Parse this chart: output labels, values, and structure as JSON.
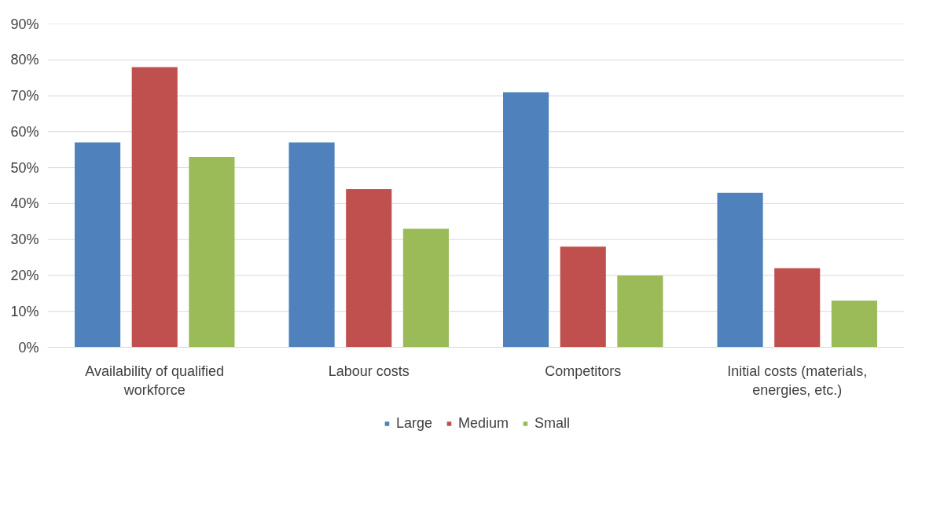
{
  "chart_data": {
    "type": "bar",
    "categories": [
      "Availability of qualified workforce",
      "Labour costs",
      "Competitors",
      "Initial costs (materials, energies, etc.)"
    ],
    "series": [
      {
        "name": "Large",
        "color": "#4f81bd",
        "values": [
          57,
          57,
          71,
          43
        ]
      },
      {
        "name": "Medium",
        "color": "#c0504d",
        "values": [
          78,
          44,
          28,
          22
        ]
      },
      {
        "name": "Small",
        "color": "#9bbb59",
        "values": [
          53,
          33,
          20,
          13
        ]
      }
    ],
    "ylim": [
      0,
      90
    ],
    "yticks": [
      {
        "value": 0,
        "label": "0%"
      },
      {
        "value": 10,
        "label": "10%"
      },
      {
        "value": 20,
        "label": "20%"
      },
      {
        "value": 30,
        "label": "30%"
      },
      {
        "value": 40,
        "label": "40%"
      },
      {
        "value": 50,
        "label": "50%"
      },
      {
        "value": 60,
        "label": "60%"
      },
      {
        "value": 70,
        "label": "70%"
      },
      {
        "value": 80,
        "label": "80%"
      },
      {
        "value": 90,
        "label": "90%"
      }
    ],
    "grid": "y",
    "legend": "bottom"
  }
}
